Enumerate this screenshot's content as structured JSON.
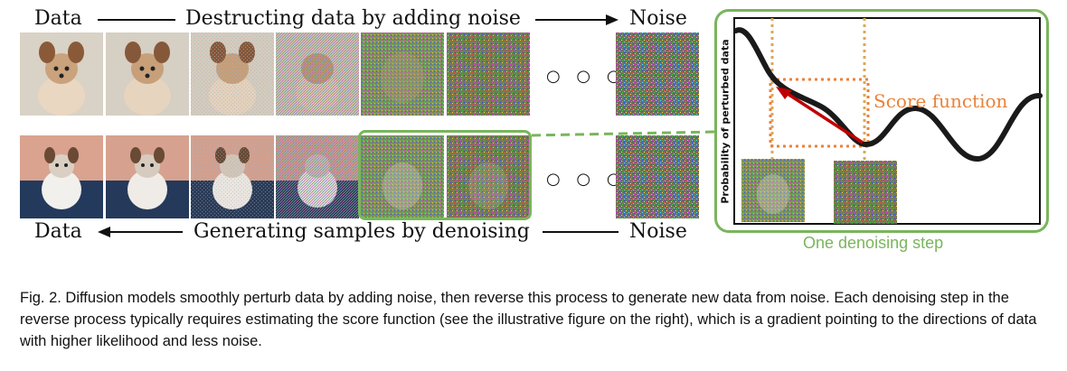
{
  "top_row": {
    "left_label": "Data",
    "middle_label": "Destructing data by adding noise",
    "right_label": "Noise"
  },
  "bottom_row": {
    "left_label": "Data",
    "middle_label": "Generating samples by denoising",
    "right_label": "Noise"
  },
  "ellipsis": "○ ○ ○",
  "panel": {
    "ylabel": "Probability of perturbed data",
    "score_label": "Score function",
    "caption": "One denoising step"
  },
  "colors": {
    "green": "#7ab55c",
    "orange": "#e9823a",
    "red": "#c00000",
    "curve": "#1a1a1a"
  },
  "figure_caption": "Fig. 2.  Diffusion models smoothly perturb data by adding noise, then reverse this process to generate new data from noise. Each denoising step in the reverse process typically requires estimating the score function (see the illustrative figure on the right), which is a gradient pointing to the directions of data with higher likelihood and less noise."
}
